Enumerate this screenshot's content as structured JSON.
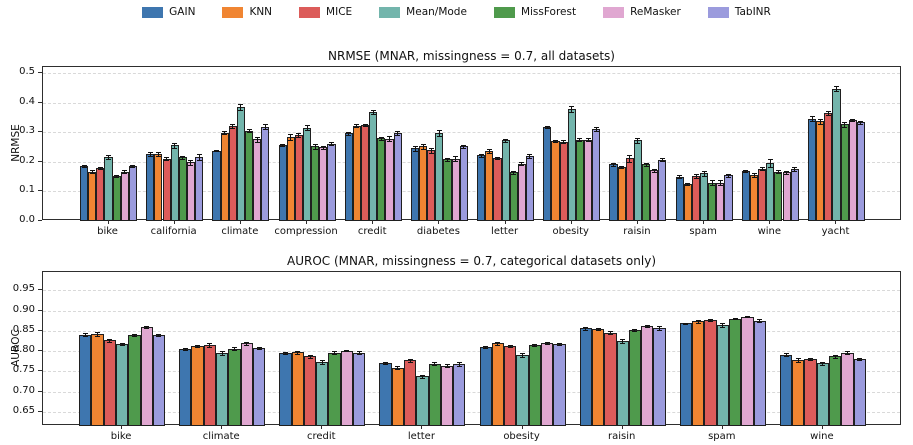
{
  "colors": {
    "background": "#ffffff",
    "bar_edge": "#1f1f1f",
    "grid": "#d9d9d9",
    "axis": "#2e2e2e",
    "text": "#111111"
  },
  "legend": {
    "entries": [
      {
        "label": "GAIN",
        "color": "#3e76af"
      },
      {
        "label": "KNN",
        "color": "#f08532"
      },
      {
        "label": "MICE",
        "color": "#dc5c5a"
      },
      {
        "label": "Mean/Mode",
        "color": "#73b5ac"
      },
      {
        "label": "MissForest",
        "color": "#4f9a4c"
      },
      {
        "label": "ReMasker",
        "color": "#e0a7d1"
      },
      {
        "label": "TabINR",
        "color": "#9b9bdd"
      }
    ]
  },
  "chart_data": [
    {
      "type": "bar",
      "title": "NRMSE (MNAR, missingness = 0.7, all datasets)",
      "ylabel": "NRMSE",
      "xlabel": "",
      "grid": true,
      "legend_position": "top-center-shared",
      "ylim": [
        0.0,
        0.52
      ],
      "yticks": [
        {
          "value": 0.0,
          "label": "0.0"
        },
        {
          "value": 0.1,
          "label": "0.1"
        },
        {
          "value": 0.2,
          "label": "0.2"
        },
        {
          "value": 0.3,
          "label": "0.3"
        },
        {
          "value": 0.4,
          "label": "0.4"
        },
        {
          "value": 0.5,
          "label": "0.5"
        }
      ],
      "categories": [
        "bike",
        "california",
        "climate",
        "compression",
        "credit",
        "diabetes",
        "letter",
        "obesity",
        "raisin",
        "spam",
        "wine",
        "yacht"
      ],
      "series": [
        {
          "name": "GAIN",
          "values": [
            0.186,
            0.227,
            0.238,
            0.256,
            0.296,
            0.245,
            0.222,
            0.318,
            0.191,
            0.15,
            0.168,
            0.346
          ],
          "errors": [
            0.003,
            0.007,
            0.003,
            0.004,
            0.004,
            0.007,
            0.005,
            0.004,
            0.005,
            0.005,
            0.004,
            0.008
          ]
        },
        {
          "name": "KNN",
          "values": [
            0.167,
            0.226,
            0.298,
            0.284,
            0.322,
            0.252,
            0.236,
            0.27,
            0.182,
            0.126,
            0.155,
            0.336
          ],
          "errors": [
            0.004,
            0.007,
            0.005,
            0.009,
            0.005,
            0.008,
            0.008,
            0.004,
            0.004,
            0.003,
            0.007,
            0.01
          ]
        },
        {
          "name": "MICE",
          "values": [
            0.178,
            0.211,
            0.32,
            0.291,
            0.325,
            0.239,
            0.212,
            0.268,
            0.212,
            0.152,
            0.177,
            0.364
          ],
          "errors": [
            0.004,
            0.006,
            0.006,
            0.007,
            0.003,
            0.009,
            0.004,
            0.004,
            0.012,
            0.007,
            0.005,
            0.006
          ]
        },
        {
          "name": "Mean/Mode",
          "values": [
            0.216,
            0.255,
            0.386,
            0.315,
            0.368,
            0.297,
            0.273,
            0.378,
            0.272,
            0.161,
            0.196,
            0.447
          ],
          "errors": [
            0.007,
            0.01,
            0.01,
            0.008,
            0.008,
            0.009,
            0.005,
            0.009,
            0.008,
            0.008,
            0.012,
            0.009
          ]
        },
        {
          "name": "MissForest",
          "values": [
            0.153,
            0.215,
            0.305,
            0.252,
            0.28,
            0.208,
            0.164,
            0.275,
            0.191,
            0.13,
            0.167,
            0.327
          ],
          "errors": [
            0.004,
            0.005,
            0.004,
            0.008,
            0.005,
            0.006,
            0.004,
            0.004,
            0.005,
            0.009,
            0.004,
            0.008
          ]
        },
        {
          "name": "ReMasker",
          "values": [
            0.167,
            0.198,
            0.276,
            0.249,
            0.278,
            0.211,
            0.194,
            0.274,
            0.172,
            0.13,
            0.164,
            0.341
          ],
          "errors": [
            0.006,
            0.008,
            0.008,
            0.005,
            0.008,
            0.007,
            0.005,
            0.005,
            0.005,
            0.007,
            0.006,
            0.004
          ]
        },
        {
          "name": "TabINR",
          "values": [
            0.186,
            0.216,
            0.319,
            0.261,
            0.298,
            0.252,
            0.22,
            0.31,
            0.207,
            0.154,
            0.177,
            0.333
          ],
          "errors": [
            0.003,
            0.01,
            0.008,
            0.006,
            0.006,
            0.006,
            0.006,
            0.007,
            0.005,
            0.005,
            0.007,
            0.004
          ]
        }
      ]
    },
    {
      "type": "bar",
      "title": "AUROC (MNAR, missingness = 0.7, categorical datasets only)",
      "ylabel": "AUROC",
      "xlabel": "",
      "grid": true,
      "legend_position": "top-center-shared",
      "ylim": [
        0.615,
        0.995
      ],
      "yticks": [
        {
          "value": 0.65,
          "label": "0.65"
        },
        {
          "value": 0.7,
          "label": "0.70"
        },
        {
          "value": 0.75,
          "label": "0.75"
        },
        {
          "value": 0.8,
          "label": "0.80"
        },
        {
          "value": 0.85,
          "label": "0.85"
        },
        {
          "value": 0.9,
          "label": "0.90"
        },
        {
          "value": 0.95,
          "label": "0.95"
        }
      ],
      "categories": [
        "bike",
        "climate",
        "credit",
        "letter",
        "obesity",
        "raisin",
        "spam",
        "wine"
      ],
      "series": [
        {
          "name": "GAIN",
          "values": [
            0.84,
            0.805,
            0.795,
            0.77,
            0.81,
            0.856,
            0.868,
            0.791
          ],
          "errors": [
            0.004,
            0.003,
            0.003,
            0.003,
            0.003,
            0.003,
            0.002,
            0.004
          ]
        },
        {
          "name": "KNN",
          "values": [
            0.842,
            0.813,
            0.797,
            0.759,
            0.819,
            0.855,
            0.873,
            0.779
          ],
          "errors": [
            0.004,
            0.002,
            0.004,
            0.003,
            0.003,
            0.003,
            0.003,
            0.005
          ]
        },
        {
          "name": "MICE",
          "values": [
            0.826,
            0.815,
            0.787,
            0.777,
            0.812,
            0.845,
            0.877,
            0.78
          ],
          "errors": [
            0.003,
            0.004,
            0.003,
            0.004,
            0.003,
            0.004,
            0.003,
            0.003
          ]
        },
        {
          "name": "Mean/Mode",
          "values": [
            0.817,
            0.796,
            0.773,
            0.738,
            0.79,
            0.825,
            0.864,
            0.77
          ],
          "errors": [
            0.003,
            0.005,
            0.004,
            0.004,
            0.004,
            0.005,
            0.004,
            0.004
          ]
        },
        {
          "name": "MissForest",
          "values": [
            0.839,
            0.806,
            0.796,
            0.769,
            0.815,
            0.852,
            0.88,
            0.787
          ],
          "errors": [
            0.003,
            0.003,
            0.003,
            0.003,
            0.003,
            0.003,
            0.002,
            0.003
          ]
        },
        {
          "name": "ReMasker",
          "values": [
            0.859,
            0.819,
            0.801,
            0.764,
            0.82,
            0.862,
            0.885,
            0.796
          ],
          "errors": [
            0.003,
            0.004,
            0.002,
            0.003,
            0.002,
            0.003,
            0.002,
            0.004
          ]
        },
        {
          "name": "TabINR",
          "values": [
            0.839,
            0.807,
            0.796,
            0.768,
            0.818,
            0.857,
            0.875,
            0.781
          ],
          "errors": [
            0.003,
            0.003,
            0.003,
            0.004,
            0.002,
            0.004,
            0.003,
            0.003
          ]
        }
      ]
    }
  ]
}
